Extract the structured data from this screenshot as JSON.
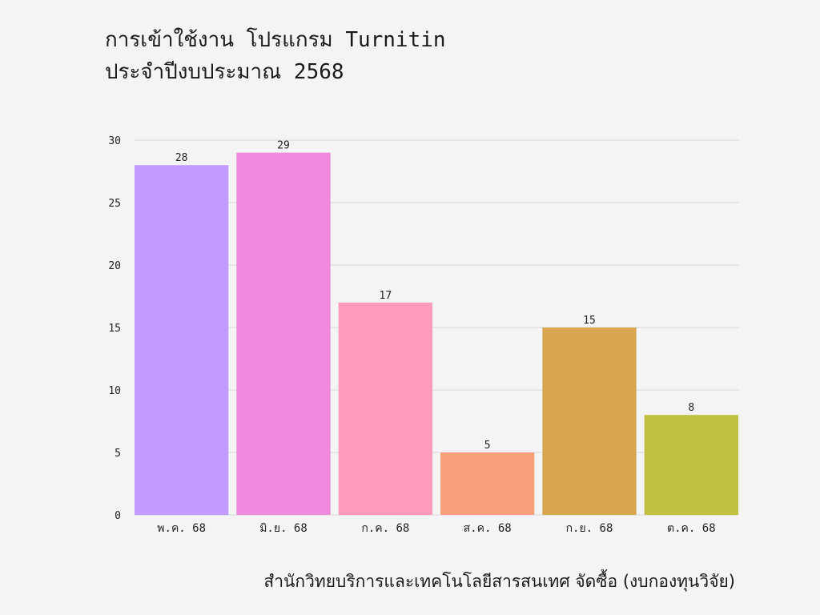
{
  "title": {
    "line1": "การเข้าใช้งาน โปรแกรม Turnitin",
    "line2": "ประจำปีงบประมาณ 2568"
  },
  "caption": "สำนักวิทยบริการและเทคโนโลยีสารสนเทศ จัดซื้อ (งบกองทุนวิจัย)",
  "chart_data": {
    "type": "bar",
    "categories": [
      "พ.ค. 68",
      "มิ.ย. 68",
      "ก.ค. 68",
      "ส.ค. 68",
      "ก.ย. 68",
      "ต.ค. 68"
    ],
    "values": [
      28,
      29,
      17,
      5,
      15,
      8
    ],
    "colors": [
      "#c299ff",
      "#ef89dd",
      "#ff9abf",
      "#f9a07a",
      "#d9a650",
      "#c0c040"
    ],
    "ylim": [
      0,
      30
    ],
    "yticks": [
      0,
      5,
      10,
      15,
      20,
      25,
      30
    ],
    "grid": true,
    "data_labels": true
  }
}
